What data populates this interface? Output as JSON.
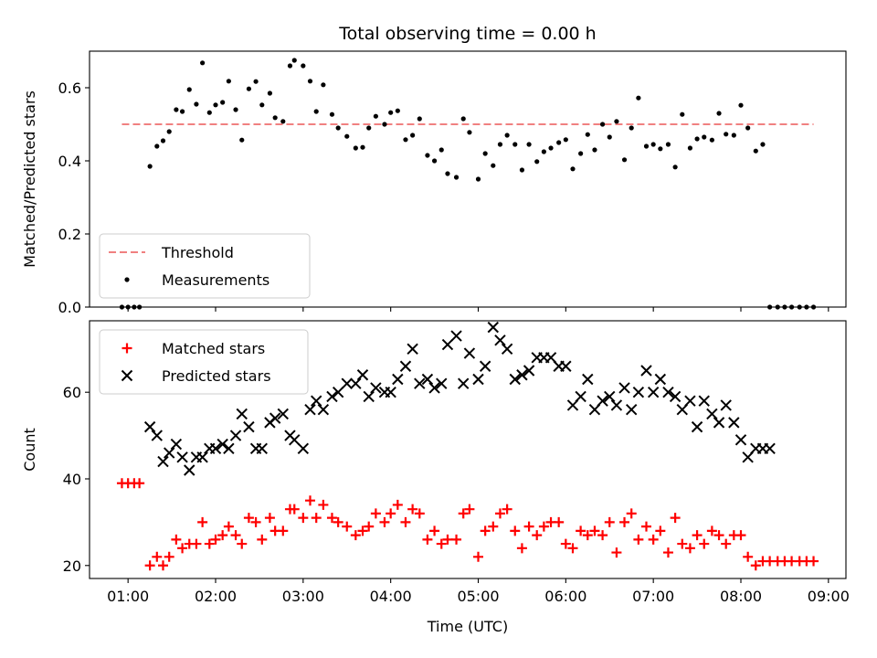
{
  "chart_data": [
    {
      "type": "scatter",
      "panel": "top",
      "title": "Total observing time = 0.00 h",
      "xlabel": "",
      "ylabel": "Matched/Predicted stars",
      "xlim": [
        0.56,
        9.2
      ],
      "ylim": [
        0.0,
        0.7
      ],
      "yticks": [
        0.0,
        0.2,
        0.4,
        0.6
      ],
      "ytick_labels": [
        "0.0",
        "0.2",
        "0.4",
        "0.6"
      ],
      "xticks": [
        1,
        2,
        3,
        4,
        5,
        6,
        7,
        8,
        9
      ],
      "grid": false,
      "legend_position": "lower-left",
      "threshold": {
        "name": "Threshold",
        "y": 0.5,
        "x": [
          0.93,
          8.83
        ],
        "color": "#f08080"
      },
      "series": [
        {
          "name": "Measurements",
          "marker": "dot",
          "color": "#000000",
          "x": [
            0.93,
            1.0,
            1.07,
            1.13,
            1.25,
            1.33,
            1.4,
            1.47,
            1.55,
            1.62,
            1.7,
            1.78,
            1.85,
            1.93,
            2.0,
            2.08,
            2.15,
            2.23,
            2.3,
            2.38,
            2.46,
            2.53,
            2.62,
            2.68,
            2.77,
            2.85,
            2.9,
            3.0,
            3.08,
            3.15,
            3.23,
            3.33,
            3.4,
            3.5,
            3.6,
            3.68,
            3.75,
            3.83,
            3.93,
            4.0,
            4.08,
            4.17,
            4.25,
            4.33,
            4.42,
            4.5,
            4.58,
            4.65,
            4.75,
            4.83,
            4.9,
            5.0,
            5.08,
            5.17,
            5.25,
            5.33,
            5.42,
            5.5,
            5.58,
            5.67,
            5.75,
            5.83,
            5.92,
            6.0,
            6.08,
            6.17,
            6.25,
            6.33,
            6.42,
            6.5,
            6.58,
            6.67,
            6.75,
            6.83,
            6.92,
            7.0,
            7.08,
            7.17,
            7.25,
            7.33,
            7.42,
            7.5,
            7.58,
            7.67,
            7.75,
            7.83,
            7.92,
            8.0,
            8.08,
            8.17,
            8.25,
            8.33,
            8.42,
            8.5,
            8.58,
            8.67,
            8.75,
            8.83
          ],
          "y": [
            0.0,
            0.0,
            0.0,
            0.0,
            0.385,
            0.44,
            0.455,
            0.48,
            0.54,
            0.535,
            0.595,
            0.555,
            0.668,
            0.532,
            0.553,
            0.56,
            0.618,
            0.54,
            0.457,
            0.597,
            0.617,
            0.553,
            0.585,
            0.518,
            0.508,
            0.66,
            0.675,
            0.66,
            0.618,
            0.535,
            0.608,
            0.527,
            0.49,
            0.467,
            0.435,
            0.437,
            0.49,
            0.522,
            0.5,
            0.532,
            0.537,
            0.458,
            0.47,
            0.515,
            0.415,
            0.4,
            0.43,
            0.365,
            0.355,
            0.515,
            0.478,
            0.35,
            0.42,
            0.387,
            0.445,
            0.47,
            0.445,
            0.375,
            0.445,
            0.398,
            0.425,
            0.435,
            0.45,
            0.458,
            0.378,
            0.42,
            0.472,
            0.43,
            0.5,
            0.465,
            0.508,
            0.403,
            0.49,
            0.572,
            0.44,
            0.445,
            0.433,
            0.445,
            0.383,
            0.527,
            0.435,
            0.46,
            0.465,
            0.457,
            0.53,
            0.473,
            0.47,
            0.552,
            0.49,
            0.427,
            0.445,
            0.0,
            0.0,
            0.0,
            0.0,
            0.0,
            0.0,
            0.0
          ]
        }
      ]
    },
    {
      "type": "scatter",
      "panel": "bottom",
      "title": "",
      "xlabel": "Time (UTC)",
      "ylabel": "Count",
      "xlim": [
        0.56,
        9.2
      ],
      "ylim": [
        17,
        76.5
      ],
      "yticks": [
        20,
        40,
        60
      ],
      "ytick_labels": [
        "20",
        "40",
        "60"
      ],
      "xticks": [
        1,
        2,
        3,
        4,
        5,
        6,
        7,
        8,
        9
      ],
      "xtick_labels": [
        "01:00",
        "02:00",
        "03:00",
        "04:00",
        "05:00",
        "06:00",
        "07:00",
        "08:00",
        "09:00"
      ],
      "grid": false,
      "legend_position": "upper-left",
      "series": [
        {
          "name": "Matched stars",
          "marker": "plus",
          "color": "#ff0000",
          "x": [
            0.93,
            1.0,
            1.07,
            1.13,
            1.25,
            1.33,
            1.4,
            1.47,
            1.55,
            1.62,
            1.7,
            1.78,
            1.85,
            1.93,
            2.0,
            2.08,
            2.15,
            2.23,
            2.3,
            2.38,
            2.46,
            2.53,
            2.62,
            2.68,
            2.77,
            2.85,
            2.9,
            3.0,
            3.08,
            3.15,
            3.23,
            3.33,
            3.4,
            3.5,
            3.6,
            3.68,
            3.75,
            3.83,
            3.93,
            4.0,
            4.08,
            4.17,
            4.25,
            4.33,
            4.42,
            4.5,
            4.58,
            4.65,
            4.75,
            4.83,
            4.9,
            5.0,
            5.08,
            5.17,
            5.25,
            5.33,
            5.42,
            5.5,
            5.58,
            5.67,
            5.75,
            5.83,
            5.92,
            6.0,
            6.08,
            6.17,
            6.25,
            6.33,
            6.42,
            6.5,
            6.58,
            6.67,
            6.75,
            6.83,
            6.92,
            7.0,
            7.08,
            7.17,
            7.25,
            7.33,
            7.42,
            7.5,
            7.58,
            7.67,
            7.75,
            7.83,
            7.92,
            8.0,
            8.08,
            8.17,
            8.25,
            8.33,
            8.42,
            8.5,
            8.58,
            8.67,
            8.75,
            8.83
          ],
          "y": [
            39,
            39,
            39,
            39,
            20,
            22,
            20,
            22,
            26,
            24,
            25,
            25,
            30,
            25,
            26,
            27,
            29,
            27,
            25,
            31,
            30,
            26,
            31,
            28,
            28,
            33,
            33,
            31,
            35,
            31,
            34,
            31,
            30,
            29,
            27,
            28,
            29,
            32,
            30,
            32,
            34,
            30,
            33,
            32,
            26,
            28,
            25,
            26,
            26,
            32,
            33,
            22,
            28,
            29,
            32,
            33,
            28,
            24,
            29,
            27,
            29,
            30,
            30,
            25,
            24,
            28,
            27,
            28,
            27,
            30,
            23,
            30,
            32,
            26,
            29,
            26,
            28,
            23,
            31,
            25,
            24,
            27,
            25,
            28,
            27,
            25,
            27,
            27,
            22,
            20,
            21,
            21,
            21,
            21,
            21,
            21,
            21,
            21
          ]
        },
        {
          "name": "Predicted stars",
          "marker": "x",
          "color": "#000000",
          "x": [
            1.25,
            1.33,
            1.4,
            1.47,
            1.55,
            1.62,
            1.7,
            1.78,
            1.85,
            1.93,
            2.0,
            2.08,
            2.15,
            2.23,
            2.3,
            2.38,
            2.46,
            2.53,
            2.62,
            2.68,
            2.77,
            2.85,
            2.9,
            3.0,
            3.08,
            3.15,
            3.23,
            3.33,
            3.4,
            3.5,
            3.6,
            3.68,
            3.75,
            3.83,
            3.93,
            4.0,
            4.08,
            4.17,
            4.25,
            4.33,
            4.42,
            4.5,
            4.58,
            4.65,
            4.75,
            4.83,
            4.9,
            5.0,
            5.08,
            5.17,
            5.25,
            5.33,
            5.42,
            5.5,
            5.58,
            5.67,
            5.75,
            5.83,
            5.92,
            6.0,
            6.08,
            6.17,
            6.25,
            6.33,
            6.42,
            6.5,
            6.58,
            6.67,
            6.75,
            6.83,
            6.92,
            7.0,
            7.08,
            7.17,
            7.25,
            7.33,
            7.42,
            7.5,
            7.58,
            7.67,
            7.75,
            7.83,
            7.92,
            8.0,
            8.08,
            8.17,
            8.25,
            8.33
          ],
          "y": [
            52,
            50,
            44,
            46,
            48,
            45,
            42,
            45,
            45,
            47,
            47,
            48,
            47,
            50,
            55,
            52,
            47,
            47,
            53,
            54,
            55,
            50,
            49,
            47,
            56,
            58,
            56,
            59,
            60,
            62,
            62,
            64,
            59,
            61,
            60,
            60,
            63,
            66,
            70,
            62,
            63,
            61,
            62,
            71,
            73,
            62,
            69,
            63,
            66,
            75,
            72,
            70,
            63,
            64,
            65,
            68,
            68,
            68,
            66,
            66,
            57,
            59,
            63,
            56,
            58,
            59,
            57,
            61,
            56,
            60,
            65,
            60,
            63,
            60,
            59,
            56,
            58,
            52,
            58,
            55,
            53,
            57,
            53,
            49,
            45,
            47,
            47,
            47
          ]
        }
      ]
    }
  ]
}
